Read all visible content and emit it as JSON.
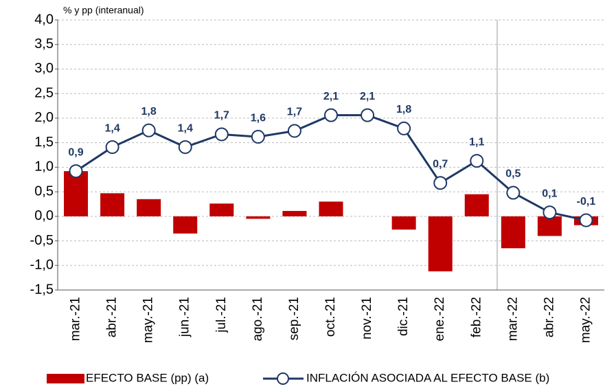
{
  "chart_data": {
    "type": "combo",
    "y_label": "% y pp (interanual)",
    "categories": [
      "mar.-21",
      "abr.-21",
      "may.-21",
      "jun.-21",
      "jul.-21",
      "ago.-21",
      "sep.-21",
      "oct.-21",
      "nov.-21",
      "dic.-21",
      "ene.-22",
      "feb.-22",
      "mar.-22",
      "abr.-22",
      "may.-22"
    ],
    "series": [
      {
        "name": "EFECTO BASE (pp) (a)",
        "type": "bar",
        "color": "#c00000",
        "values": [
          0.92,
          0.47,
          0.35,
          -0.35,
          0.26,
          -0.05,
          0.11,
          0.3,
          0,
          -0.27,
          -1.12,
          0.45,
          -0.65,
          -0.4,
          -0.18
        ]
      },
      {
        "name": "INFLACIÓN ASOCIADA AL EFECTO BASE (b)",
        "type": "line",
        "color": "#1f3864",
        "values": [
          0.92,
          1.41,
          1.75,
          1.41,
          1.67,
          1.62,
          1.74,
          2.06,
          2.06,
          1.79,
          0.68,
          1.13,
          0.48,
          0.08,
          -0.08
        ],
        "value_labels": [
          "0,9",
          "1,4",
          "1,8",
          "1,4",
          "1,7",
          "1,6",
          "1,7",
          "2,1",
          "2,1",
          "1,8",
          "0,7",
          "1,1",
          "0,5",
          "0,1",
          "-0,1"
        ]
      }
    ],
    "ylim": [
      -1.5,
      4.0
    ],
    "yticks": [
      {
        "value": -1.5,
        "label": "-1,5"
      },
      {
        "value": -1.0,
        "label": "-1,0"
      },
      {
        "value": -0.5,
        "label": "-0,5"
      },
      {
        "value": 0,
        "label": "0,0"
      },
      {
        "value": 0.5,
        "label": "0,5"
      },
      {
        "value": 1.0,
        "label": "1,0"
      },
      {
        "value": 1.5,
        "label": "1,5"
      },
      {
        "value": 2.0,
        "label": "2,0"
      },
      {
        "value": 2.5,
        "label": "2,5"
      },
      {
        "value": 3.0,
        "label": "3,0"
      },
      {
        "value": 3.5,
        "label": "3,5"
      },
      {
        "value": 4.0,
        "label": "4,0"
      }
    ],
    "grid": true
  }
}
